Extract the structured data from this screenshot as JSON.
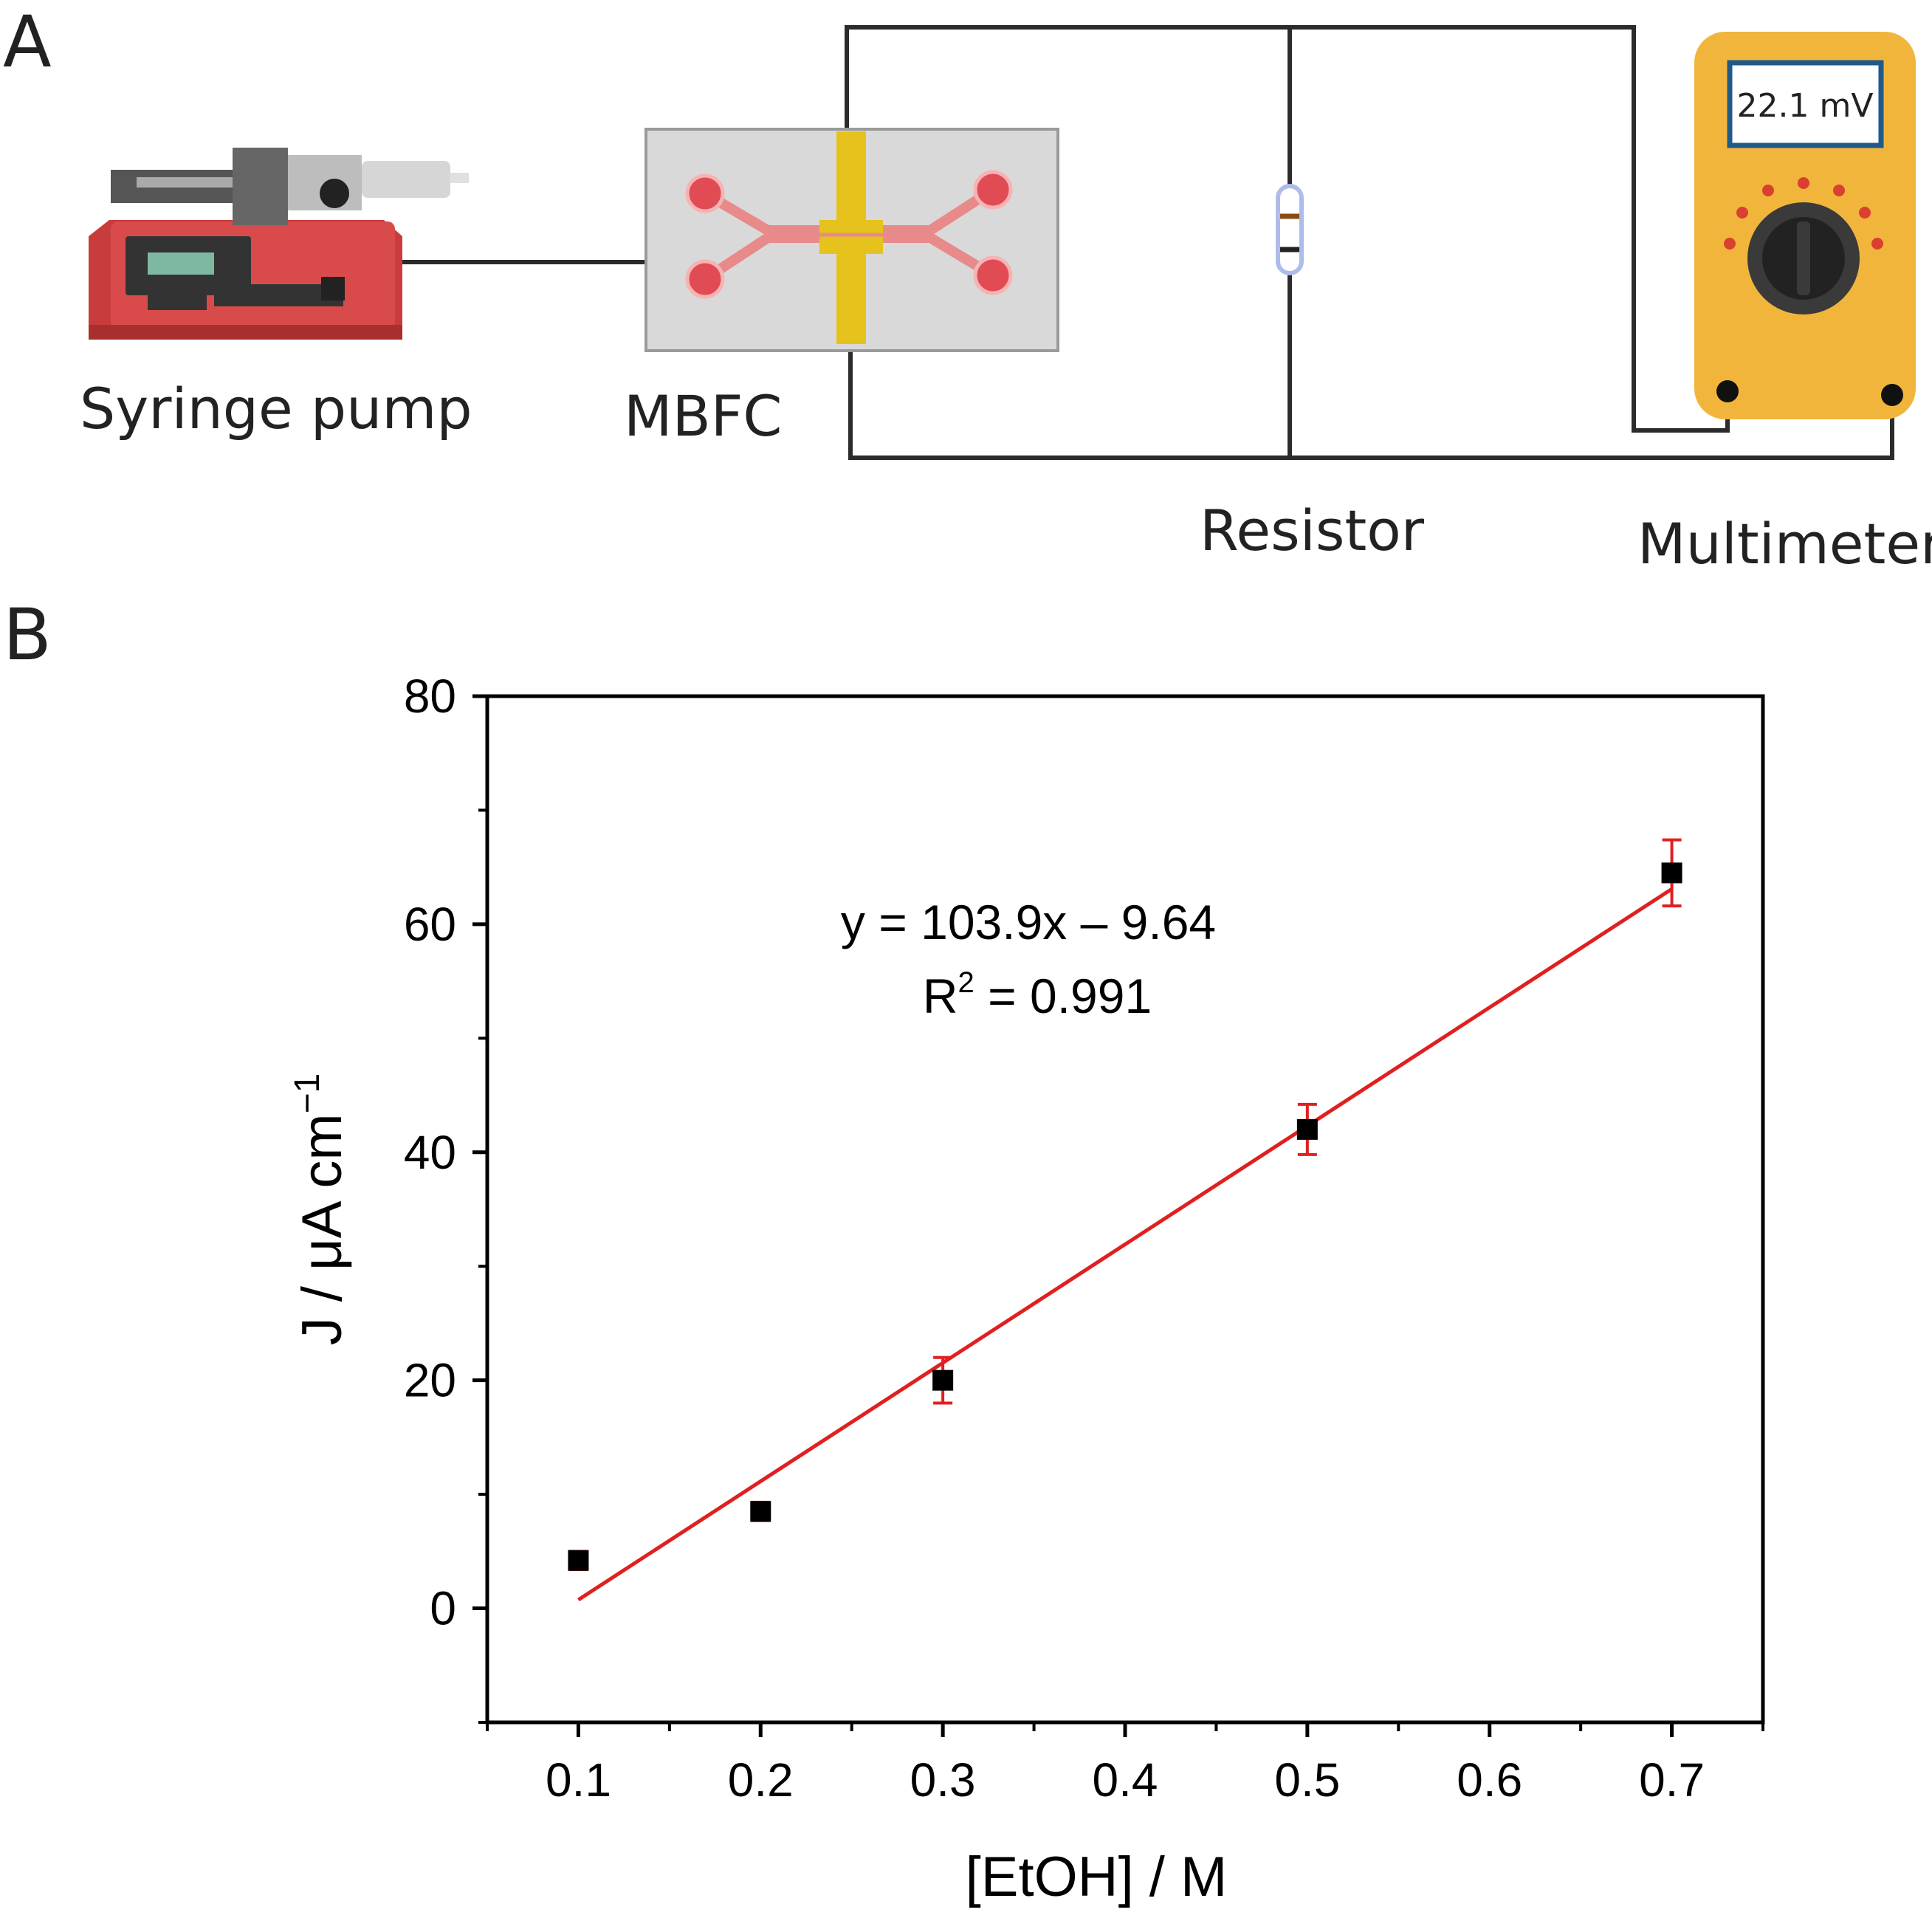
{
  "panel_a": {
    "letter": "A",
    "labels": {
      "syringe_pump": "Syringe pump",
      "mbfc": "MBFC",
      "resistor": "Resistor",
      "multimeter": "Multimeter"
    },
    "multimeter_display": "22.1 mV",
    "colors": {
      "pump": "#d94b4b",
      "chip": "#d9d9d9",
      "electrode": "#e6c21c",
      "channel": "#e88a8a",
      "multimeter": "#f2b53c",
      "resistor": "#b8c4ee"
    }
  },
  "panel_b": {
    "letter": "B",
    "equation": "y = 103.9x – 9.64",
    "r2_label": "R",
    "r2_superscript": "2",
    "r2_value": " = 0.991"
  },
  "chart_data": {
    "type": "scatter",
    "title": "",
    "xlabel": "[EtOH] / M",
    "ylabel_main": "J / μA cm",
    "ylabel_superscript": "−1",
    "xlim": [
      0.05,
      0.75
    ],
    "ylim": [
      -10,
      80
    ],
    "x_ticks": [
      0.1,
      0.2,
      0.3,
      0.4,
      0.5,
      0.6,
      0.7
    ],
    "x_tick_labels": [
      "0.1",
      "0.2",
      "0.3",
      "0.4",
      "0.5",
      "0.6",
      "0.7"
    ],
    "y_ticks": [
      0,
      20,
      40,
      60,
      80
    ],
    "y_tick_labels": [
      "0",
      "20",
      "40",
      "60",
      "80"
    ],
    "series": [
      {
        "name": "J",
        "marker": "square",
        "color": "#000000",
        "error_color": "#e02020",
        "x": [
          0.1,
          0.2,
          0.3,
          0.5,
          0.7
        ],
        "y": [
          4.2,
          8.5,
          20.0,
          42.0,
          64.5
        ],
        "yerr": [
          0.8,
          0.8,
          2.0,
          2.2,
          2.9
        ]
      }
    ],
    "fit": {
      "slope": 103.9,
      "intercept": -9.64,
      "x_range": [
        0.1,
        0.7
      ],
      "color": "#e02020"
    }
  }
}
